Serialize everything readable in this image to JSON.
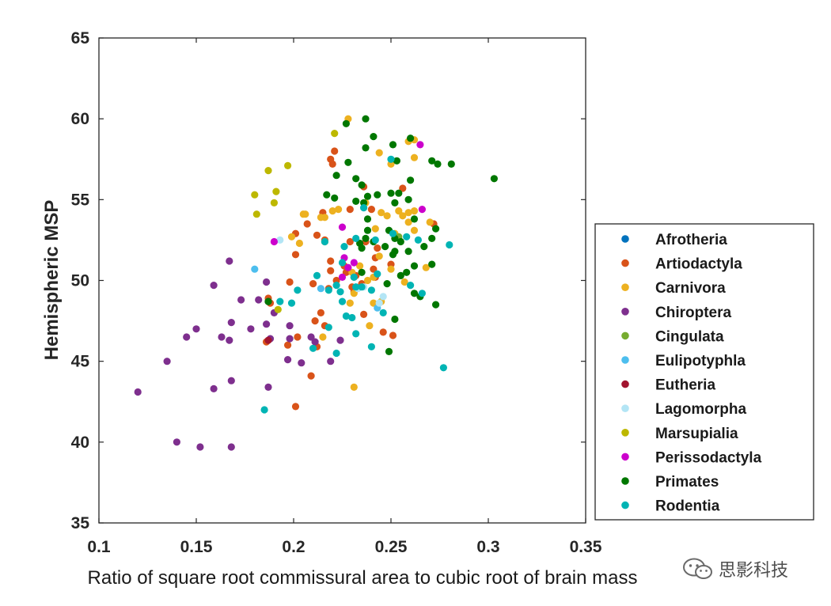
{
  "chart_data": {
    "type": "scatter",
    "title": "",
    "xlabel": "Ratio of square root commissural area to cubic root of brain mass",
    "ylabel": "Hemispheric MSP",
    "xlim": [
      0.1,
      0.35
    ],
    "ylim": [
      35,
      65
    ],
    "xticks": [
      "0.1",
      "0.15",
      "0.2",
      "0.25",
      "0.3",
      "0.35"
    ],
    "yticks": [
      "35",
      "40",
      "45",
      "50",
      "55",
      "60",
      "65"
    ],
    "grid": false,
    "legend_position": "right",
    "series": [
      {
        "name": "Afrotheria",
        "color": "#0072BD",
        "points": []
      },
      {
        "name": "Artiodactyla",
        "color": "#D95319",
        "points": [
          [
            0.221,
            58.0
          ],
          [
            0.219,
            57.5
          ],
          [
            0.22,
            57.2
          ],
          [
            0.236,
            55.8
          ],
          [
            0.256,
            55.7
          ],
          [
            0.215,
            54.2
          ],
          [
            0.229,
            54.4
          ],
          [
            0.24,
            54.4
          ],
          [
            0.207,
            53.5
          ],
          [
            0.201,
            52.9
          ],
          [
            0.216,
            52.5
          ],
          [
            0.212,
            52.8
          ],
          [
            0.237,
            52.4
          ],
          [
            0.229,
            52.4
          ],
          [
            0.243,
            52.0
          ],
          [
            0.272,
            53.5
          ],
          [
            0.201,
            51.6
          ],
          [
            0.242,
            51.4
          ],
          [
            0.219,
            51.2
          ],
          [
            0.219,
            50.6
          ],
          [
            0.226,
            50.9
          ],
          [
            0.227,
            50.5
          ],
          [
            0.232,
            50.3
          ],
          [
            0.231,
            50.2
          ],
          [
            0.241,
            50.7
          ],
          [
            0.25,
            51.0
          ],
          [
            0.242,
            50.2
          ],
          [
            0.198,
            49.9
          ],
          [
            0.21,
            49.8
          ],
          [
            0.222,
            50.0
          ],
          [
            0.23,
            49.6
          ],
          [
            0.231,
            49.3
          ],
          [
            0.235,
            49.8
          ],
          [
            0.187,
            48.9
          ],
          [
            0.188,
            48.6
          ],
          [
            0.218,
            49.5
          ],
          [
            0.214,
            48.0
          ],
          [
            0.211,
            47.5
          ],
          [
            0.216,
            47.2
          ],
          [
            0.236,
            47.9
          ],
          [
            0.246,
            46.8
          ],
          [
            0.251,
            46.6
          ],
          [
            0.202,
            46.5
          ],
          [
            0.197,
            46.0
          ],
          [
            0.186,
            46.2
          ],
          [
            0.212,
            45.9
          ],
          [
            0.209,
            44.1
          ],
          [
            0.201,
            42.2
          ]
        ]
      },
      {
        "name": "Carnivora",
        "color": "#EDB120",
        "points": [
          [
            0.228,
            60.0
          ],
          [
            0.262,
            58.7
          ],
          [
            0.259,
            58.6
          ],
          [
            0.244,
            57.9
          ],
          [
            0.25,
            57.2
          ],
          [
            0.262,
            57.6
          ],
          [
            0.237,
            54.8
          ],
          [
            0.245,
            54.2
          ],
          [
            0.248,
            54.0
          ],
          [
            0.254,
            54.3
          ],
          [
            0.256,
            54.0
          ],
          [
            0.259,
            54.2
          ],
          [
            0.262,
            54.3
          ],
          [
            0.259,
            53.6
          ],
          [
            0.205,
            54.1
          ],
          [
            0.206,
            54.1
          ],
          [
            0.214,
            53.9
          ],
          [
            0.216,
            53.9
          ],
          [
            0.22,
            54.3
          ],
          [
            0.223,
            54.4
          ],
          [
            0.242,
            53.2
          ],
          [
            0.252,
            52.9
          ],
          [
            0.262,
            53.1
          ],
          [
            0.199,
            52.7
          ],
          [
            0.203,
            52.3
          ],
          [
            0.216,
            52.4
          ],
          [
            0.27,
            53.6
          ],
          [
            0.25,
            50.7
          ],
          [
            0.244,
            51.5
          ],
          [
            0.234,
            50.9
          ],
          [
            0.23,
            50.5
          ],
          [
            0.241,
            50.2
          ],
          [
            0.268,
            50.8
          ],
          [
            0.231,
            49.2
          ],
          [
            0.238,
            50.0
          ],
          [
            0.229,
            48.6
          ],
          [
            0.241,
            48.6
          ],
          [
            0.245,
            48.7
          ],
          [
            0.257,
            49.9
          ],
          [
            0.215,
            46.5
          ],
          [
            0.239,
            47.2
          ],
          [
            0.231,
            43.4
          ]
        ]
      },
      {
        "name": "Chiroptera",
        "color": "#7E2F8E",
        "points": [
          [
            0.167,
            51.2
          ],
          [
            0.159,
            49.7
          ],
          [
            0.186,
            49.9
          ],
          [
            0.173,
            48.8
          ],
          [
            0.182,
            48.8
          ],
          [
            0.187,
            48.7
          ],
          [
            0.19,
            48.0
          ],
          [
            0.168,
            47.4
          ],
          [
            0.178,
            47.0
          ],
          [
            0.186,
            47.3
          ],
          [
            0.198,
            47.2
          ],
          [
            0.15,
            47.0
          ],
          [
            0.145,
            46.5
          ],
          [
            0.163,
            46.5
          ],
          [
            0.167,
            46.3
          ],
          [
            0.198,
            46.4
          ],
          [
            0.188,
            46.4
          ],
          [
            0.209,
            46.5
          ],
          [
            0.211,
            46.2
          ],
          [
            0.135,
            45.0
          ],
          [
            0.197,
            45.1
          ],
          [
            0.204,
            44.9
          ],
          [
            0.224,
            46.3
          ],
          [
            0.219,
            45.0
          ],
          [
            0.168,
            43.8
          ],
          [
            0.159,
            43.3
          ],
          [
            0.187,
            43.4
          ],
          [
            0.12,
            43.1
          ],
          [
            0.14,
            40.0
          ],
          [
            0.152,
            39.7
          ],
          [
            0.168,
            39.7
          ]
        ]
      },
      {
        "name": "Cingulata",
        "color": "#77AC30",
        "points": [
          [
            0.254,
            52.7
          ]
        ]
      },
      {
        "name": "Eulipotyphla",
        "color": "#4DBEEE",
        "points": [
          [
            0.18,
            50.7
          ],
          [
            0.214,
            49.5
          ],
          [
            0.243,
            48.3
          ]
        ]
      },
      {
        "name": "Eutheria",
        "color": "#A2142F",
        "points": [
          [
            0.187,
            46.3
          ]
        ]
      },
      {
        "name": "Lagomorpha",
        "color": "#B3E5F5",
        "points": [
          [
            0.193,
            52.5
          ],
          [
            0.246,
            49.0
          ],
          [
            0.233,
            49.5
          ],
          [
            0.236,
            49.6
          ],
          [
            0.244,
            48.6
          ]
        ]
      },
      {
        "name": "Marsupialia",
        "color": "#BDB800",
        "points": [
          [
            0.221,
            59.1
          ],
          [
            0.187,
            56.8
          ],
          [
            0.197,
            57.1
          ],
          [
            0.191,
            55.5
          ],
          [
            0.18,
            55.3
          ],
          [
            0.19,
            54.8
          ],
          [
            0.181,
            54.1
          ],
          [
            0.192,
            48.2
          ]
        ]
      },
      {
        "name": "Perissodactyla",
        "color": "#CC00CC",
        "points": [
          [
            0.265,
            58.4
          ],
          [
            0.266,
            54.4
          ],
          [
            0.225,
            53.3
          ],
          [
            0.19,
            52.4
          ],
          [
            0.226,
            51.4
          ],
          [
            0.231,
            51.1
          ],
          [
            0.228,
            50.8
          ],
          [
            0.225,
            50.2
          ]
        ]
      },
      {
        "name": "Primates",
        "color": "#007700",
        "points": [
          [
            0.237,
            60.0
          ],
          [
            0.227,
            59.7
          ],
          [
            0.26,
            58.8
          ],
          [
            0.241,
            58.9
          ],
          [
            0.251,
            58.4
          ],
          [
            0.237,
            58.2
          ],
          [
            0.281,
            57.2
          ],
          [
            0.271,
            57.4
          ],
          [
            0.274,
            57.2
          ],
          [
            0.253,
            57.4
          ],
          [
            0.228,
            57.3
          ],
          [
            0.222,
            56.5
          ],
          [
            0.303,
            56.3
          ],
          [
            0.232,
            56.3
          ],
          [
            0.235,
            55.9
          ],
          [
            0.26,
            56.2
          ],
          [
            0.243,
            55.3
          ],
          [
            0.25,
            55.4
          ],
          [
            0.254,
            55.4
          ],
          [
            0.238,
            55.2
          ],
          [
            0.217,
            55.3
          ],
          [
            0.221,
            55.1
          ],
          [
            0.236,
            54.8
          ],
          [
            0.232,
            54.9
          ],
          [
            0.259,
            55.0
          ],
          [
            0.252,
            54.8
          ],
          [
            0.238,
            53.8
          ],
          [
            0.262,
            53.8
          ],
          [
            0.238,
            53.1
          ],
          [
            0.273,
            53.2
          ],
          [
            0.249,
            53.1
          ],
          [
            0.237,
            52.6
          ],
          [
            0.252,
            52.6
          ],
          [
            0.255,
            52.4
          ],
          [
            0.241,
            52.4
          ],
          [
            0.234,
            52.3
          ],
          [
            0.235,
            52.0
          ],
          [
            0.271,
            52.6
          ],
          [
            0.267,
            52.1
          ],
          [
            0.247,
            52.1
          ],
          [
            0.259,
            51.8
          ],
          [
            0.252,
            51.8
          ],
          [
            0.251,
            51.6
          ],
          [
            0.262,
            50.9
          ],
          [
            0.271,
            51.0
          ],
          [
            0.235,
            50.5
          ],
          [
            0.258,
            50.5
          ],
          [
            0.255,
            50.3
          ],
          [
            0.248,
            49.8
          ],
          [
            0.262,
            49.2
          ],
          [
            0.265,
            49.0
          ],
          [
            0.252,
            47.6
          ],
          [
            0.273,
            48.5
          ],
          [
            0.249,
            45.6
          ],
          [
            0.187,
            48.7
          ]
        ]
      },
      {
        "name": "Rodentia",
        "color": "#00B4B4",
        "points": [
          [
            0.25,
            57.5
          ],
          [
            0.236,
            54.5
          ],
          [
            0.251,
            52.9
          ],
          [
            0.242,
            52.5
          ],
          [
            0.258,
            52.7
          ],
          [
            0.264,
            52.5
          ],
          [
            0.28,
            52.2
          ],
          [
            0.216,
            52.4
          ],
          [
            0.226,
            52.1
          ],
          [
            0.225,
            51.1
          ],
          [
            0.212,
            50.3
          ],
          [
            0.231,
            50.2
          ],
          [
            0.243,
            50.4
          ],
          [
            0.232,
            49.6
          ],
          [
            0.235,
            49.6
          ],
          [
            0.24,
            49.4
          ],
          [
            0.26,
            49.7
          ],
          [
            0.266,
            49.2
          ],
          [
            0.202,
            49.4
          ],
          [
            0.222,
            49.7
          ],
          [
            0.218,
            49.4
          ],
          [
            0.224,
            49.3
          ],
          [
            0.225,
            48.7
          ],
          [
            0.193,
            48.7
          ],
          [
            0.199,
            48.6
          ],
          [
            0.227,
            47.8
          ],
          [
            0.23,
            47.7
          ],
          [
            0.246,
            48.0
          ],
          [
            0.218,
            47.1
          ],
          [
            0.232,
            46.7
          ],
          [
            0.21,
            45.8
          ],
          [
            0.24,
            45.9
          ],
          [
            0.222,
            45.5
          ],
          [
            0.185,
            42.0
          ],
          [
            0.277,
            44.6
          ],
          [
            0.232,
            52.6
          ]
        ]
      }
    ]
  },
  "watermark": {
    "text": "思影科技",
    "icon": "wechat-icon"
  }
}
